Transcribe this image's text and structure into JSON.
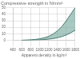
{
  "chart_data": {
    "type": "area",
    "title": "Compressive strength in N/mm²",
    "xlabel": "Apparent density in kg/m³",
    "x": [
      600,
      700,
      800,
      900,
      1000,
      1100,
      1200,
      1300,
      1400,
      1500,
      1600,
      1700,
      1800
    ],
    "series": [
      {
        "values": [
          0.1,
          0.2,
          0.3,
          0.5,
          0.8,
          1.2,
          1.8,
          2.7,
          4.0,
          5.8,
          8.2,
          11.5,
          15.5
        ],
        "color": "#4a7a70"
      },
      {
        "values": [
          0.2,
          0.4,
          0.8,
          1.4,
          2.3,
          3.8,
          6.0,
          9.5,
          14.5,
          21.0,
          30.0,
          40.0,
          50.0
        ],
        "color": "#4a7a70"
      }
    ],
    "color": "#7aaba0",
    "xlim": [
      400,
      1800
    ],
    "ylim": [
      0,
      50
    ],
    "xticks": [
      400,
      600,
      800,
      1000,
      1200,
      1400,
      1600,
      1800
    ],
    "yticks": [
      0,
      10,
      20,
      30,
      40,
      50
    ],
    "grid": true
  }
}
